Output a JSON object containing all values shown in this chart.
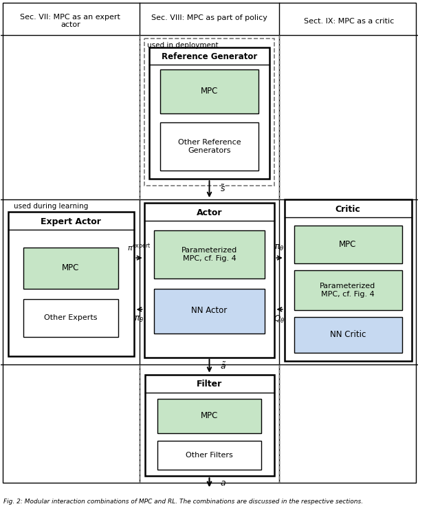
{
  "fig_width": 6.4,
  "fig_height": 7.46,
  "dpi": 100,
  "bg_color": "#ffffff",
  "green_fill": "#c6e5c6",
  "blue_fill": "#c6d9f1",
  "white_fill": "#ffffff",
  "gray_line": "#aaaaaa",
  "dashed_color": "#777777",
  "sec_headers": [
    "Sec. VII: MPC as an expert\nactor",
    "Sec. VIII: MPC as part of policy",
    "Sect. IX: MPC as a critic"
  ],
  "caption": "Fig. 2: Modular interaction combinations of MPC and RL. The combinations are discussed in the respective sections."
}
